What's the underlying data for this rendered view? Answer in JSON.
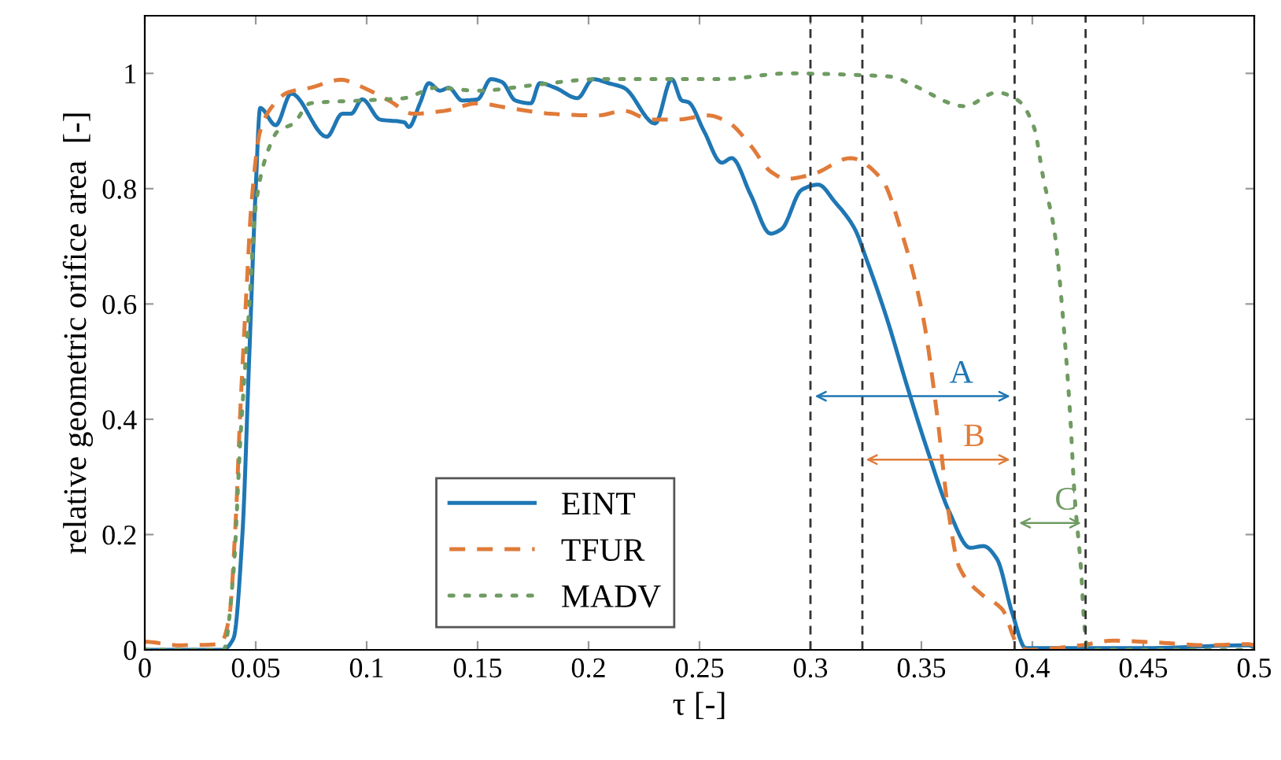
{
  "chart_data": {
    "type": "line",
    "xlabel": "τ [-]",
    "ylabel": "relative geometric orifice area  [-]",
    "xlim": [
      0,
      0.5
    ],
    "ylim": [
      0,
      1.1
    ],
    "xticks": [
      0,
      0.05,
      0.1,
      0.15,
      0.2,
      0.25,
      0.3,
      0.35,
      0.4,
      0.45,
      0.5
    ],
    "yticks": [
      0,
      0.2,
      0.4,
      0.6,
      0.8,
      1
    ],
    "grid": false,
    "legend": "bottom",
    "series": [
      {
        "name": "EINT",
        "color": "#1f77b4",
        "line_style": "solid",
        "x": [
          0,
          0.035,
          0.04,
          0.044,
          0.047,
          0.05,
          0.052,
          0.059,
          0.066,
          0.082,
          0.089,
          0.093,
          0.098,
          0.106,
          0.117,
          0.119,
          0.124,
          0.128,
          0.133,
          0.137,
          0.143,
          0.15,
          0.156,
          0.161,
          0.167,
          0.174,
          0.178,
          0.185,
          0.195,
          0.202,
          0.209,
          0.216,
          0.23,
          0.2375,
          0.242,
          0.245,
          0.252,
          0.26,
          0.2645,
          0.273,
          0.282,
          0.287,
          0.296,
          0.3035,
          0.311,
          0.32,
          0.325,
          0.334,
          0.344,
          0.353,
          0.3625,
          0.372,
          0.378,
          0.384,
          0.391,
          0.397,
          0.45,
          0.497,
          0.5
        ],
        "values": [
          0,
          0,
          0.02,
          0.2,
          0.5,
          0.8,
          0.94,
          0.91,
          0.965,
          0.89,
          0.93,
          0.93,
          0.955,
          0.92,
          0.915,
          0.907,
          0.948,
          0.983,
          0.97,
          0.975,
          0.953,
          0.955,
          0.99,
          0.985,
          0.953,
          0.948,
          0.983,
          0.975,
          0.957,
          0.99,
          0.983,
          0.975,
          0.913,
          0.99,
          0.953,
          0.95,
          0.9,
          0.845,
          0.853,
          0.79,
          0.722,
          0.73,
          0.798,
          0.807,
          0.777,
          0.73,
          0.68,
          0.58,
          0.452,
          0.343,
          0.24,
          0.177,
          0.18,
          0.158,
          0.063,
          0.003,
          0.003,
          0.008,
          0.005
        ]
      },
      {
        "name": "TFUR",
        "color": "#e07b39",
        "line_style": "dashed",
        "x": [
          0,
          0.015,
          0.034,
          0.038,
          0.041,
          0.043,
          0.046,
          0.048,
          0.052,
          0.0575,
          0.0645,
          0.0745,
          0.0887,
          0.0957,
          0.11,
          0.121,
          0.135,
          0.15,
          0.164,
          0.183,
          0.204,
          0.216,
          0.228,
          0.24,
          0.254,
          0.263,
          0.273,
          0.282,
          0.289,
          0.301,
          0.318,
          0.332,
          0.341,
          0.351,
          0.357,
          0.362,
          0.367,
          0.3766,
          0.3865,
          0.3936,
          0.398,
          0.422,
          0.436,
          0.455,
          0.479,
          0.497,
          0.5
        ],
        "values": [
          0.014,
          0.008,
          0.01,
          0.055,
          0.226,
          0.41,
          0.635,
          0.77,
          0.9,
          0.943,
          0.967,
          0.975,
          0.989,
          0.98,
          0.953,
          0.93,
          0.935,
          0.948,
          0.94,
          0.93,
          0.927,
          0.935,
          0.92,
          0.92,
          0.927,
          0.915,
          0.875,
          0.83,
          0.817,
          0.825,
          0.853,
          0.817,
          0.725,
          0.572,
          0.41,
          0.245,
          0.144,
          0.098,
          0.07,
          0.008,
          0,
          0.008,
          0.016,
          0.013,
          0.008,
          0.01,
          0.008
        ]
      },
      {
        "name": "MADV",
        "color": "#6f9b62",
        "line_style": "dotted",
        "x": [
          0,
          0.0355,
          0.04,
          0.043,
          0.047,
          0.05,
          0.055,
          0.06,
          0.067,
          0.0745,
          0.098,
          0.117,
          0.131,
          0.15,
          0.176,
          0.204,
          0.24,
          0.26,
          0.2894,
          0.3227,
          0.337,
          0.346,
          0.3695,
          0.384,
          0.3936,
          0.4007,
          0.405,
          0.41,
          0.4135,
          0.417,
          0.419,
          0.422,
          0.4234,
          0.425,
          0.5
        ],
        "values": [
          0,
          0.0,
          0.136,
          0.36,
          0.59,
          0.77,
          0.86,
          0.9,
          0.913,
          0.948,
          0.953,
          0.957,
          0.975,
          0.97,
          0.98,
          0.99,
          0.99,
          0.99,
          1.0,
          0.997,
          0.994,
          0.98,
          0.943,
          0.967,
          0.953,
          0.907,
          0.817,
          0.725,
          0.59,
          0.41,
          0.27,
          0.136,
          0.044,
          0,
          0
        ]
      },
      {
        "type": "line",
        "color": "#1f77b4",
        "x": [
          0.302,
          0.39
        ],
        "values": [
          0.44,
          0.44
        ]
      },
      {
        "type": "line",
        "color": "#e07b39",
        "x": [
          0.325,
          0.39
        ],
        "values": [
          0.33,
          0.33
        ]
      },
      {
        "type": "line",
        "color": "#6f9b62",
        "x": [
          0.394,
          0.422
        ],
        "values": [
          0.22,
          0.22
        ]
      }
    ],
    "ref_lines": [
      {
        "axis": "x",
        "value": 0.3,
        "color": "#333333",
        "line_style": "dashed"
      },
      {
        "axis": "x",
        "value": 0.3234,
        "color": "#333333",
        "line_style": "dashed"
      },
      {
        "axis": "x",
        "value": 0.392,
        "color": "#333333",
        "line_style": "dashed"
      },
      {
        "axis": "x",
        "value": 0.424,
        "color": "#333333",
        "line_style": "dashed"
      }
    ],
    "annotations": [
      "A",
      "B",
      "C"
    ]
  }
}
